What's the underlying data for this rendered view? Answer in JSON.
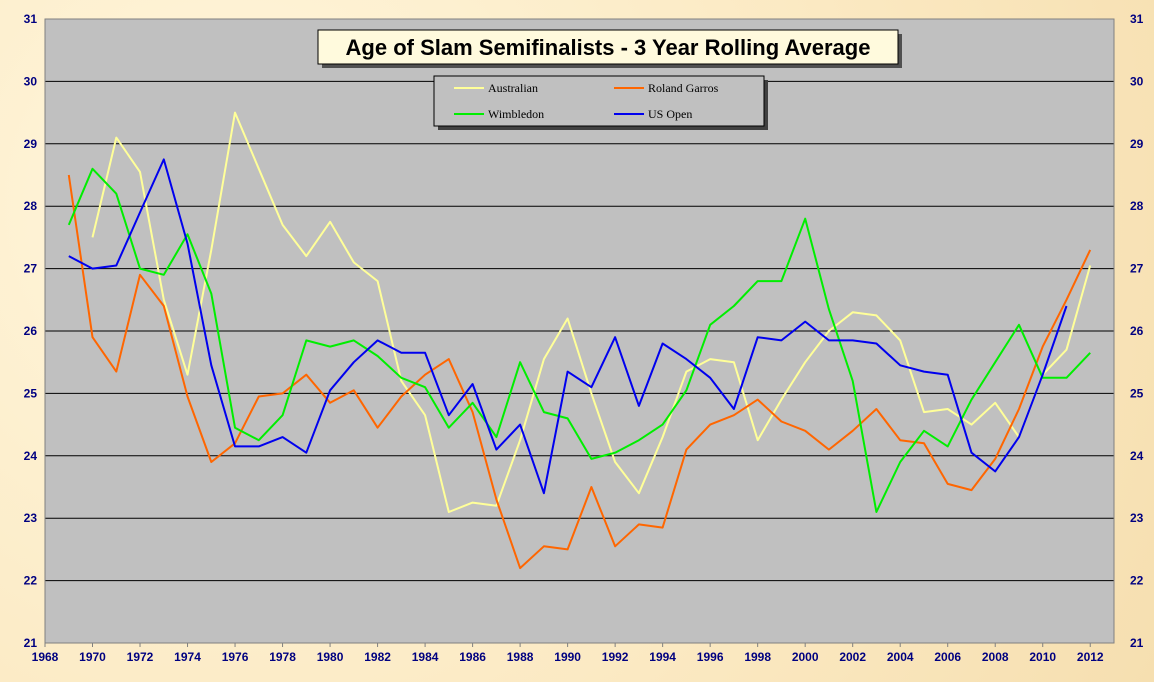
{
  "chart_data": {
    "type": "line",
    "title": "Age of Slam Semifinalists - 3 Year Rolling Average",
    "xlabel": "",
    "ylabel": "",
    "xlim": [
      1968,
      2013
    ],
    "ylim": [
      21,
      31
    ],
    "x_ticks": [
      "1968",
      "1970",
      "1972",
      "1974",
      "1976",
      "1978",
      "1980",
      "1982",
      "1984",
      "1986",
      "1988",
      "1990",
      "1992",
      "1994",
      "1996",
      "1998",
      "2000",
      "2002",
      "2004",
      "2006",
      "2008",
      "2010",
      "2012"
    ],
    "y_ticks": [
      "21",
      "22",
      "23",
      "24",
      "25",
      "26",
      "27",
      "28",
      "29",
      "30",
      "31"
    ],
    "legend_placement": "top-center",
    "plot_background": "#c0c0c0",
    "series": [
      {
        "name": "Australian",
        "color": "#ffff99",
        "x": [
          1970,
          1971,
          1972,
          1973,
          1974,
          1975,
          1976,
          1977,
          1978,
          1979,
          1980,
          1981,
          1982,
          1983,
          1984,
          1985,
          1986,
          1987,
          1988,
          1989,
          1990,
          1991,
          1992,
          1993,
          1994,
          1995,
          1996,
          1997,
          1998,
          1999,
          2000,
          2001,
          2002,
          2003,
          2004,
          2005,
          2006,
          2007,
          2008,
          2009,
          2010,
          2011,
          2012
        ],
        "values": [
          27.5,
          29.1,
          28.55,
          26.5,
          25.3,
          27.3,
          29.5,
          28.6,
          27.7,
          27.2,
          27.75,
          27.1,
          26.8,
          25.2,
          24.65,
          23.1,
          23.25,
          23.2,
          24.25,
          25.55,
          26.2,
          25.0,
          23.9,
          23.4,
          24.3,
          25.35,
          25.55,
          25.5,
          24.25,
          24.9,
          25.5,
          26.0,
          26.3,
          26.25,
          25.85,
          24.7,
          24.75,
          24.5,
          24.85,
          24.3,
          25.3,
          25.7,
          27.05
        ]
      },
      {
        "name": "Roland Garros",
        "color": "#ff6600",
        "x": [
          1969,
          1970,
          1971,
          1972,
          1973,
          1974,
          1975,
          1976,
          1977,
          1978,
          1979,
          1980,
          1981,
          1982,
          1983,
          1984,
          1985,
          1986,
          1987,
          1988,
          1989,
          1990,
          1991,
          1992,
          1993,
          1994,
          1995,
          1996,
          1997,
          1998,
          1999,
          2000,
          2001,
          2002,
          2003,
          2004,
          2005,
          2006,
          2007,
          2008,
          2009,
          2010,
          2011,
          2012
        ],
        "values": [
          28.5,
          25.9,
          25.35,
          26.9,
          26.4,
          24.95,
          23.9,
          24.2,
          24.95,
          25.0,
          25.3,
          24.85,
          25.05,
          24.45,
          24.95,
          25.3,
          25.55,
          24.7,
          23.3,
          22.2,
          22.55,
          22.5,
          23.5,
          22.55,
          22.9,
          22.85,
          24.1,
          24.5,
          24.65,
          24.9,
          24.55,
          24.4,
          24.1,
          24.4,
          24.75,
          24.25,
          24.2,
          23.55,
          23.45,
          23.95,
          24.75,
          25.75,
          26.5,
          27.3
        ]
      },
      {
        "name": "Wimbledon",
        "color": "#00ee00",
        "x": [
          1969,
          1970,
          1971,
          1972,
          1973,
          1974,
          1975,
          1976,
          1977,
          1978,
          1979,
          1980,
          1981,
          1982,
          1983,
          1984,
          1985,
          1986,
          1987,
          1988,
          1989,
          1990,
          1991,
          1992,
          1993,
          1994,
          1995,
          1996,
          1997,
          1998,
          1999,
          2000,
          2001,
          2002,
          2003,
          2004,
          2005,
          2006,
          2007,
          2008,
          2009,
          2010,
          2011,
          2012
        ],
        "values": [
          27.7,
          28.6,
          28.2,
          27.0,
          26.9,
          27.55,
          26.6,
          24.45,
          24.25,
          24.65,
          25.85,
          25.75,
          25.85,
          25.6,
          25.25,
          25.1,
          24.45,
          24.85,
          24.3,
          25.5,
          24.7,
          24.6,
          23.95,
          24.05,
          24.25,
          24.5,
          25.05,
          26.1,
          26.4,
          26.8,
          26.8,
          27.8,
          26.35,
          25.2,
          23.1,
          23.9,
          24.4,
          24.15,
          24.9,
          25.5,
          26.1,
          25.25,
          25.25,
          25.65
        ]
      },
      {
        "name": "US Open",
        "color": "#0000ee",
        "x": [
          1969,
          1970,
          1971,
          1972,
          1973,
          1974,
          1975,
          1976,
          1977,
          1978,
          1979,
          1980,
          1981,
          1982,
          1983,
          1984,
          1985,
          1986,
          1987,
          1988,
          1989,
          1990,
          1991,
          1992,
          1993,
          1994,
          1995,
          1996,
          1997,
          1998,
          1999,
          2000,
          2001,
          2002,
          2003,
          2004,
          2005,
          2006,
          2007,
          2008,
          2009,
          2010,
          2011
        ],
        "values": [
          27.2,
          27.0,
          27.05,
          27.9,
          28.75,
          27.4,
          25.45,
          24.15,
          24.15,
          24.3,
          24.05,
          25.05,
          25.5,
          25.85,
          25.65,
          25.65,
          24.65,
          25.15,
          24.1,
          24.5,
          23.4,
          25.35,
          25.1,
          25.9,
          24.8,
          25.8,
          25.55,
          25.25,
          24.75,
          25.9,
          25.85,
          26.15,
          25.85,
          25.85,
          25.8,
          25.45,
          25.35,
          25.3,
          24.05,
          23.75,
          24.3,
          25.3,
          26.4
        ]
      }
    ]
  }
}
